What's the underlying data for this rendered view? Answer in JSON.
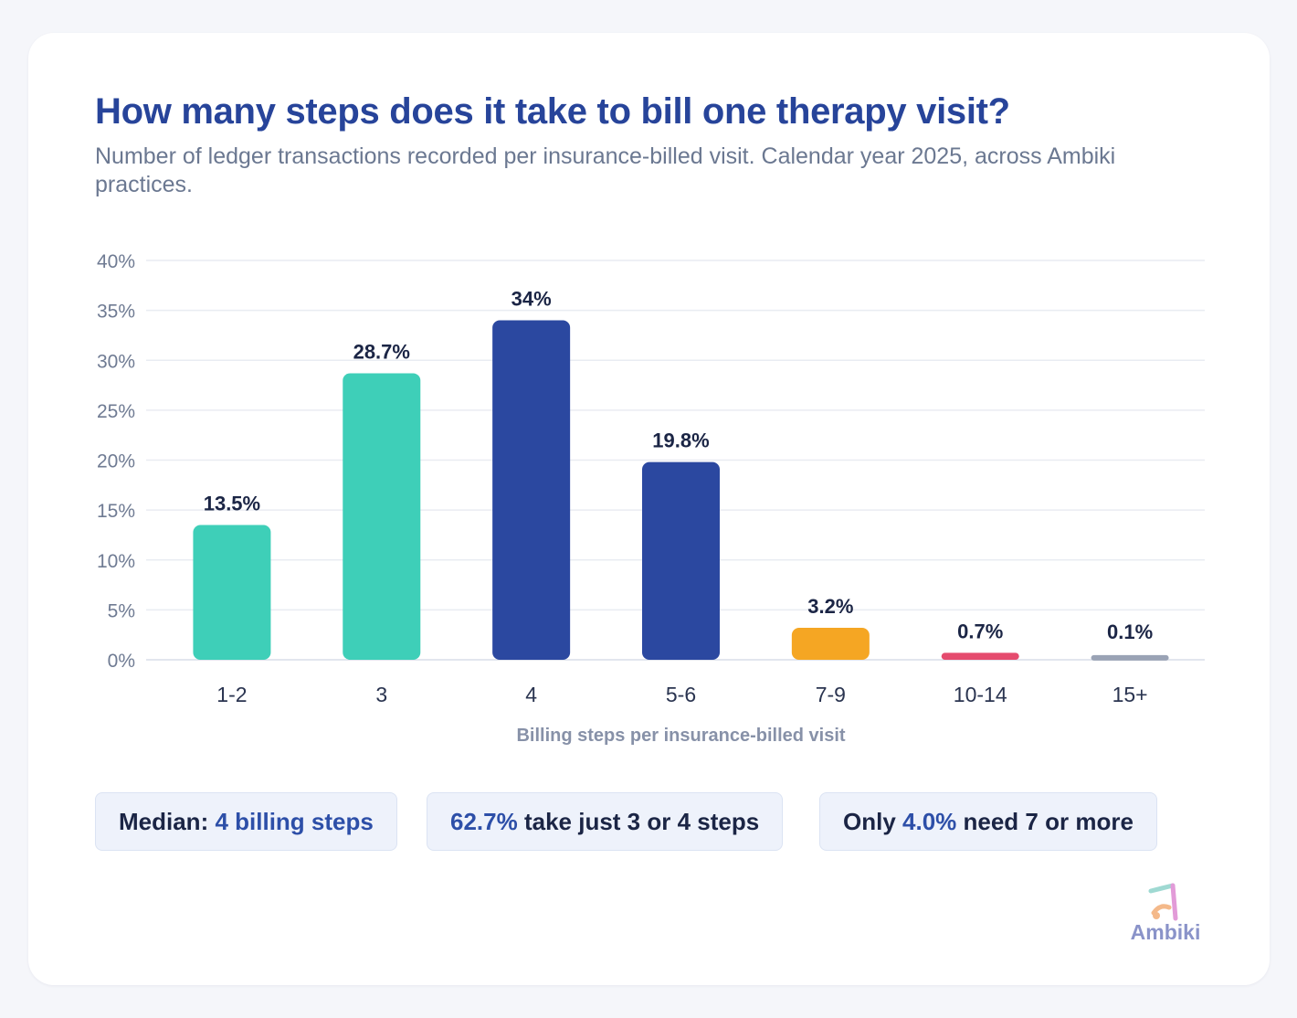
{
  "header": {
    "title": "How many steps does it take to bill one therapy visit?",
    "subtitle": "Number of ledger transactions recorded per insurance-billed visit. Calendar year 2025, across Ambiki practices."
  },
  "chart_data": {
    "type": "bar",
    "categories": [
      "1-2",
      "3",
      "4",
      "5-6",
      "7-9",
      "10-14",
      "15+"
    ],
    "values": [
      13.5,
      28.7,
      34,
      19.8,
      3.2,
      0.7,
      0.1
    ],
    "data_labels": [
      "13.5%",
      "28.7%",
      "34%",
      "19.8%",
      "3.2%",
      "0.7%",
      "0.1%"
    ],
    "bar_colors": [
      "#3ecfb8",
      "#3ecfb8",
      "#2b48a0",
      "#2b48a0",
      "#f5a623",
      "#e54b6e",
      "#9aa3b5"
    ],
    "xlabel": "Billing steps per insurance-billed visit",
    "ylabel": "",
    "ylim": [
      0,
      40
    ],
    "yticks": [
      0,
      5,
      10,
      15,
      20,
      25,
      30,
      35,
      40
    ],
    "ytick_labels": [
      "0%",
      "5%",
      "10%",
      "15%",
      "20%",
      "25%",
      "30%",
      "35%",
      "40%"
    ],
    "grid": true
  },
  "callouts": [
    {
      "prefix": "Median: ",
      "highlight": "4 billing steps",
      "suffix": ""
    },
    {
      "prefix": "",
      "highlight": "62.7%",
      "suffix": " take just 3 or 4 steps"
    },
    {
      "prefix": "Only ",
      "highlight": "4.0%",
      "suffix": " need 7 or more"
    }
  ],
  "brand": {
    "name": "Ambiki",
    "icon": "ambiki-logo-icon"
  }
}
